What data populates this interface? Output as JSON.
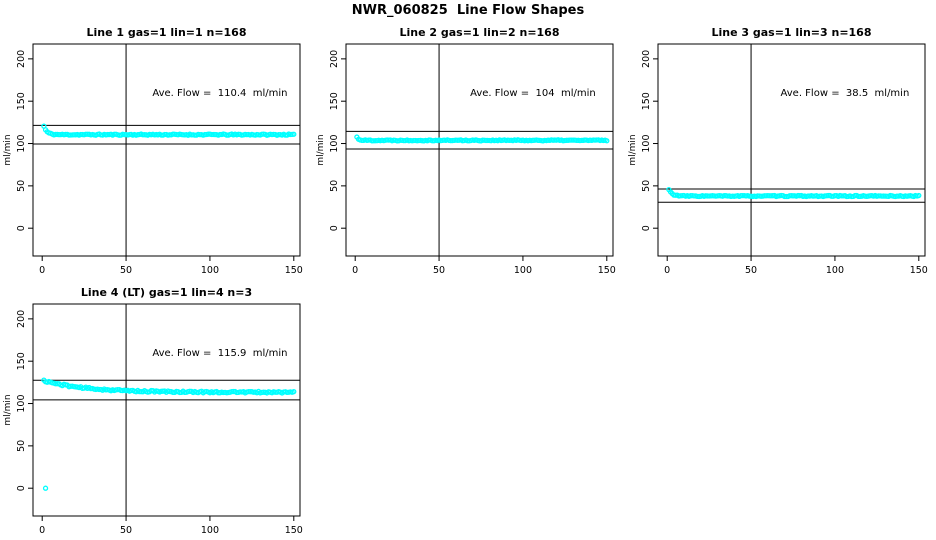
{
  "figure": {
    "title": "NWR_060825  Line Flow Shapes",
    "background": "#FFFFFF",
    "point_color": "#00FFFF",
    "line_color": "#000000"
  },
  "chart_data": [
    {
      "type": "scatter",
      "title": "Line 1 gas=1 lin=1 n=168",
      "annotation": "Ave. Flow =  110.4  ml/min",
      "ave_flow_ml_min": 110.4,
      "ylabel": "ml/min",
      "xticks": [
        0,
        50,
        100,
        150
      ],
      "yticks": [
        0,
        50,
        100,
        150,
        200
      ],
      "ref_hlines": [
        121.4,
        99.4
      ],
      "ref_vline": 50,
      "points": {
        "x_start": 1,
        "x_end": 150,
        "baseline": 110.5,
        "initial": 120.5,
        "decay_tau": 1.8,
        "noise": 0.7,
        "seed": 11,
        "outliers": []
      }
    },
    {
      "type": "scatter",
      "title": "Line 2 gas=1 lin=2 n=168",
      "annotation": "Ave. Flow =  104  ml/min",
      "ave_flow_ml_min": 104,
      "ylabel": "ml/min",
      "xticks": [
        0,
        50,
        100,
        150
      ],
      "yticks": [
        0,
        50,
        100,
        150,
        200
      ],
      "ref_hlines": [
        114.4,
        93.6
      ],
      "ref_vline": 50,
      "points": {
        "x_start": 1,
        "x_end": 150,
        "baseline": 103.8,
        "initial": 107.5,
        "decay_tau": 1.2,
        "noise": 0.6,
        "seed": 22,
        "outliers": []
      }
    },
    {
      "type": "scatter",
      "title": "Line 3 gas=1 lin=3 n=168",
      "annotation": "Ave. Flow =  38.5  ml/min",
      "ave_flow_ml_min": 38.5,
      "ylabel": "ml/min",
      "xticks": [
        0,
        50,
        100,
        150
      ],
      "yticks": [
        0,
        50,
        100,
        150,
        200
      ],
      "ref_hlines": [
        46.3,
        30.7
      ],
      "ref_vline": 50,
      "points": {
        "x_start": 1,
        "x_end": 150,
        "baseline": 38.0,
        "initial": 45.5,
        "decay_tau": 2.0,
        "noise": 0.6,
        "seed": 33,
        "outliers": []
      }
    },
    {
      "type": "scatter",
      "title": "Line 4 (LT) gas=1 lin=4 n=3",
      "annotation": "Ave. Flow =  115.9  ml/min",
      "ave_flow_ml_min": 115.9,
      "ylabel": "ml/min",
      "xticks": [
        0,
        50,
        100,
        150
      ],
      "yticks": [
        0,
        50,
        100,
        150,
        200
      ],
      "ref_hlines": [
        127.5,
        104.3
      ],
      "ref_vline": 50,
      "points": {
        "x_start": 1,
        "x_end": 150,
        "baseline": 113.3,
        "initial": 127.0,
        "decay_tau": 25,
        "noise": 1.0,
        "seed": 44,
        "outliers": [
          [
            2,
            0
          ]
        ]
      }
    }
  ]
}
